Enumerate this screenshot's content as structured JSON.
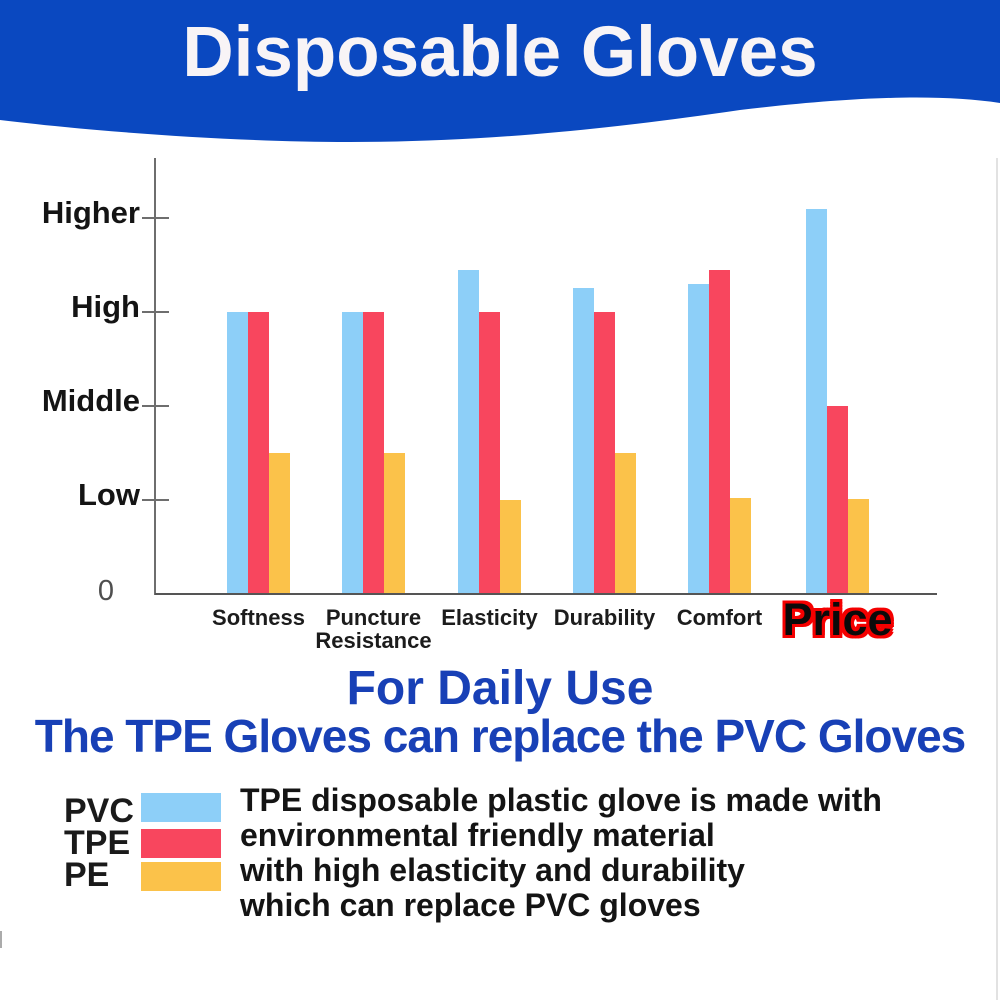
{
  "banner": {
    "title": "Disposable Gloves",
    "bg_color": "#0a48c0",
    "text_color": "#f8f4f6"
  },
  "chart_data": {
    "type": "bar",
    "title": "",
    "xlabel": "",
    "ylabel": "",
    "categories": [
      "Softness",
      "Puncture\nResistance",
      "Elasticity",
      "Durability",
      "Comfort",
      "Price"
    ],
    "highlight_category": "Price",
    "series": [
      {
        "name": "PVC",
        "color": "#8DCFF8",
        "values": [
          3.0,
          3.0,
          3.45,
          3.25,
          3.3,
          4.1
        ]
      },
      {
        "name": "TPE",
        "color": "#F8465E",
        "values": [
          3.0,
          3.0,
          3.0,
          3.0,
          3.45,
          2.0
        ]
      },
      {
        "name": "PE",
        "color": "#FBC24A",
        "values": [
          1.5,
          1.5,
          1.0,
          1.5,
          1.02,
          1.01
        ]
      }
    ],
    "y_ticks": [
      {
        "label": "Higher",
        "value": 4
      },
      {
        "label": "High",
        "value": 3
      },
      {
        "label": "Middle",
        "value": 2
      },
      {
        "label": "Low",
        "value": 1
      },
      {
        "label": "0",
        "value": 0
      }
    ],
    "ylim": [
      0,
      4.64
    ],
    "grid": false,
    "legend_position": "bottom-left"
  },
  "taglines": {
    "line1": "For Daily Use",
    "line2": "The TPE Gloves can replace the PVC Gloves",
    "color": "#1840b6"
  },
  "legend": {
    "items": [
      {
        "label": "PVC",
        "color": "#8DCFF8"
      },
      {
        "label": "TPE",
        "color": "#F8465E"
      },
      {
        "label": "PE",
        "color": "#FBC24A"
      }
    ]
  },
  "description": {
    "lines": [
      "TPE disposable plastic glove is made with",
      "environmental friendly material",
      "with high elasticity and durability",
      "which can replace PVC gloves"
    ]
  }
}
